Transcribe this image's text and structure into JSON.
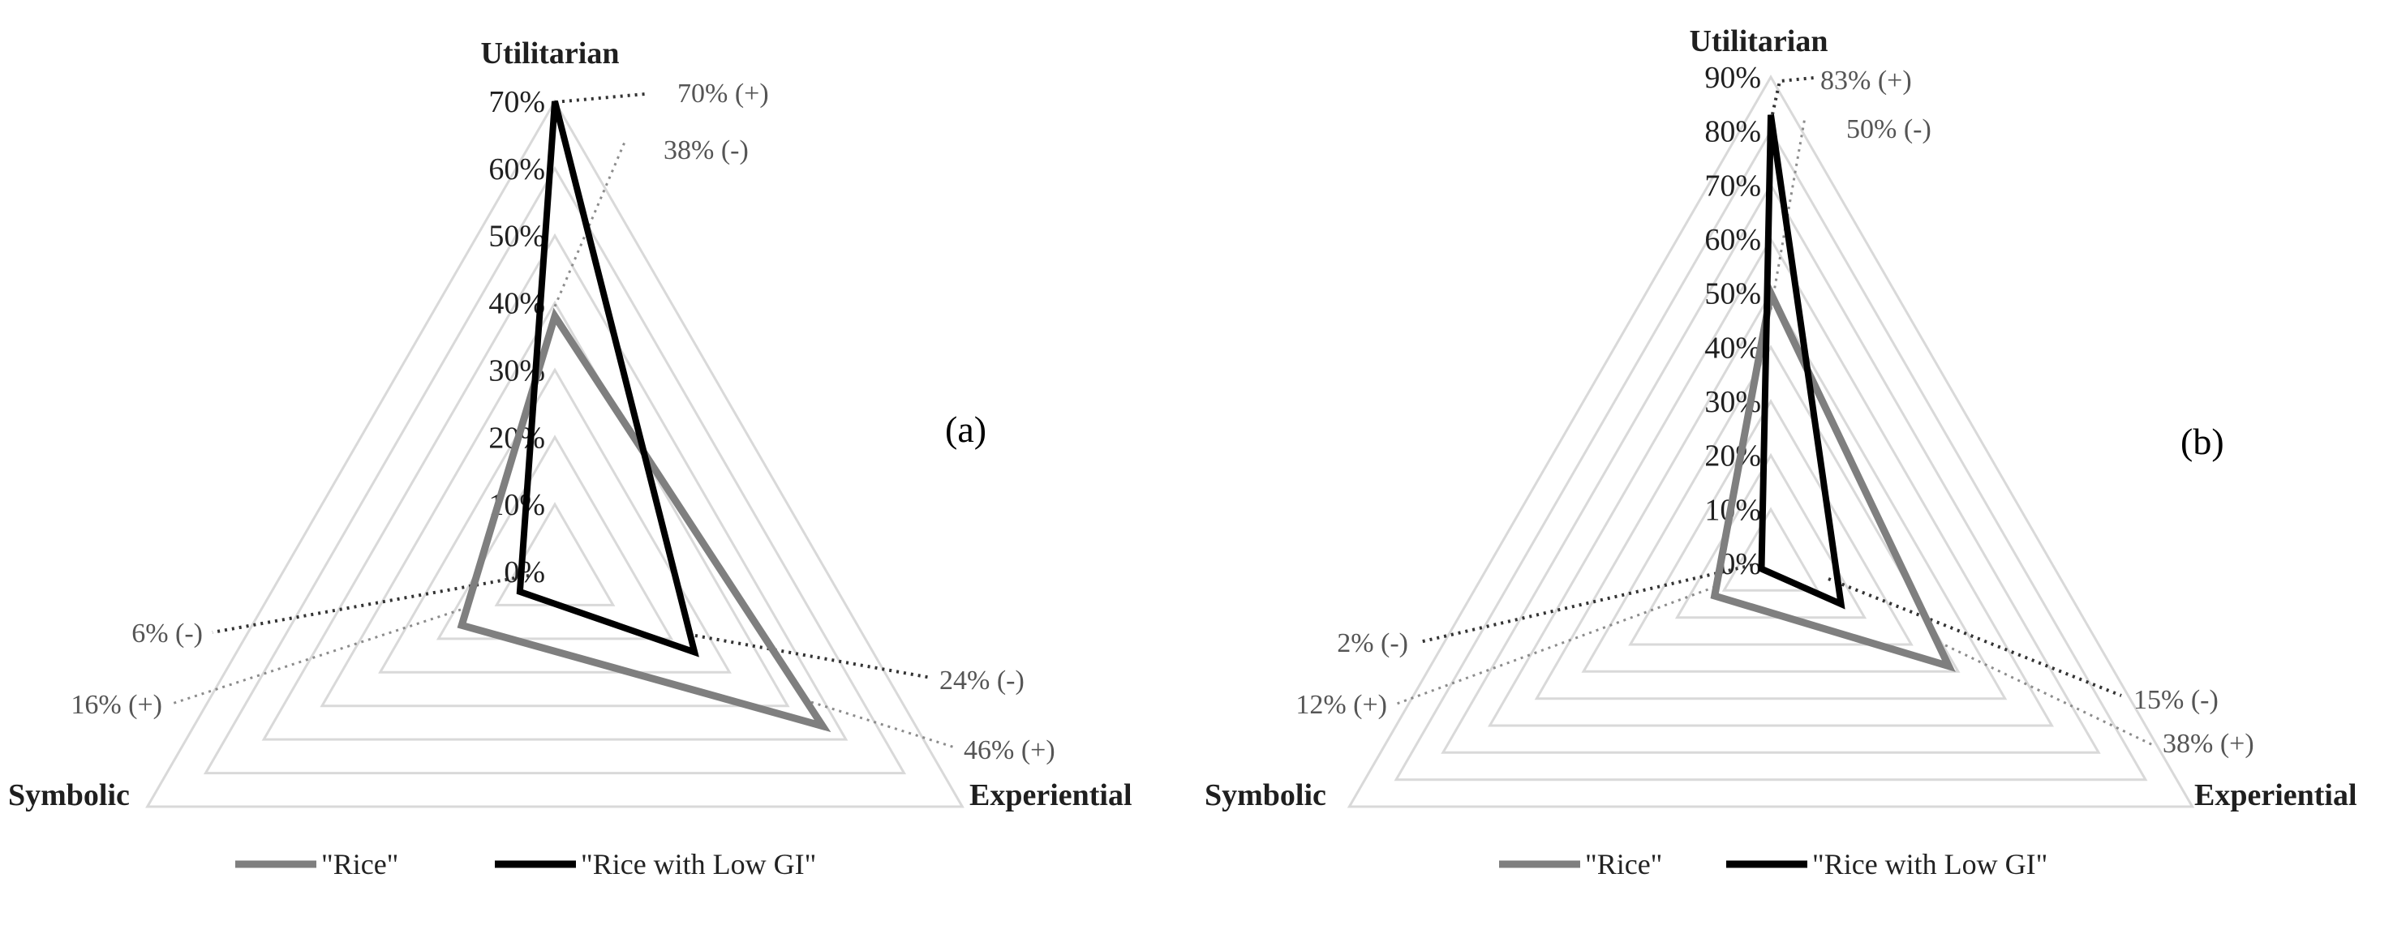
{
  "colors": {
    "rice": "#7f7f7f",
    "rice_low_gi": "#000000",
    "grid": "#d9d9d9",
    "annotation_dark": "#333333",
    "annotation_light": "#8c8c8c"
  },
  "legend": {
    "rice_label": "\"Rice\"",
    "rice_low_gi_label": "\"Rice with Low GI\""
  },
  "chart_data": [
    {
      "type": "radar",
      "panel_label": "(a)",
      "axes": [
        "Utilitarian",
        "Experiential",
        "Symbolic"
      ],
      "tick_labels": [
        "0%",
        "10%",
        "20%",
        "30%",
        "40%",
        "50%",
        "60%",
        "70%"
      ],
      "range": [
        0,
        70
      ],
      "series": [
        {
          "name": "\"Rice\"",
          "values": [
            38,
            46,
            16
          ]
        },
        {
          "name": "\"Rice with Low GI\"",
          "values": [
            70,
            24,
            6
          ]
        }
      ],
      "annotations": {
        "utilitarian_low_gi": "70% (+)",
        "utilitarian_rice": "38% (-)",
        "experiential_low_gi": "24% (-)",
        "experiential_rice": "46% (+)",
        "symbolic_low_gi": "6% (-)",
        "symbolic_rice": "16% (+)"
      },
      "legend": "bottom"
    },
    {
      "type": "radar",
      "panel_label": "(b)",
      "axes": [
        "Utilitarian",
        "Experiential",
        "Symbolic"
      ],
      "tick_labels": [
        "0%",
        "10%",
        "20%",
        "30%",
        "40%",
        "50%",
        "60%",
        "70%",
        "80%",
        "90%"
      ],
      "range": [
        0,
        90
      ],
      "series": [
        {
          "name": "\"Rice\"",
          "values": [
            50,
            38,
            12
          ]
        },
        {
          "name": "\"Rice with Low GI\"",
          "values": [
            83,
            15,
            2
          ]
        }
      ],
      "annotations": {
        "utilitarian_low_gi": "83% (+)",
        "utilitarian_rice": "50% (-)",
        "experiential_low_gi": "15% (-)",
        "experiential_rice": "38% (+)",
        "symbolic_low_gi": "2% (-)",
        "symbolic_rice": "12% (+)"
      },
      "legend": "bottom"
    }
  ]
}
